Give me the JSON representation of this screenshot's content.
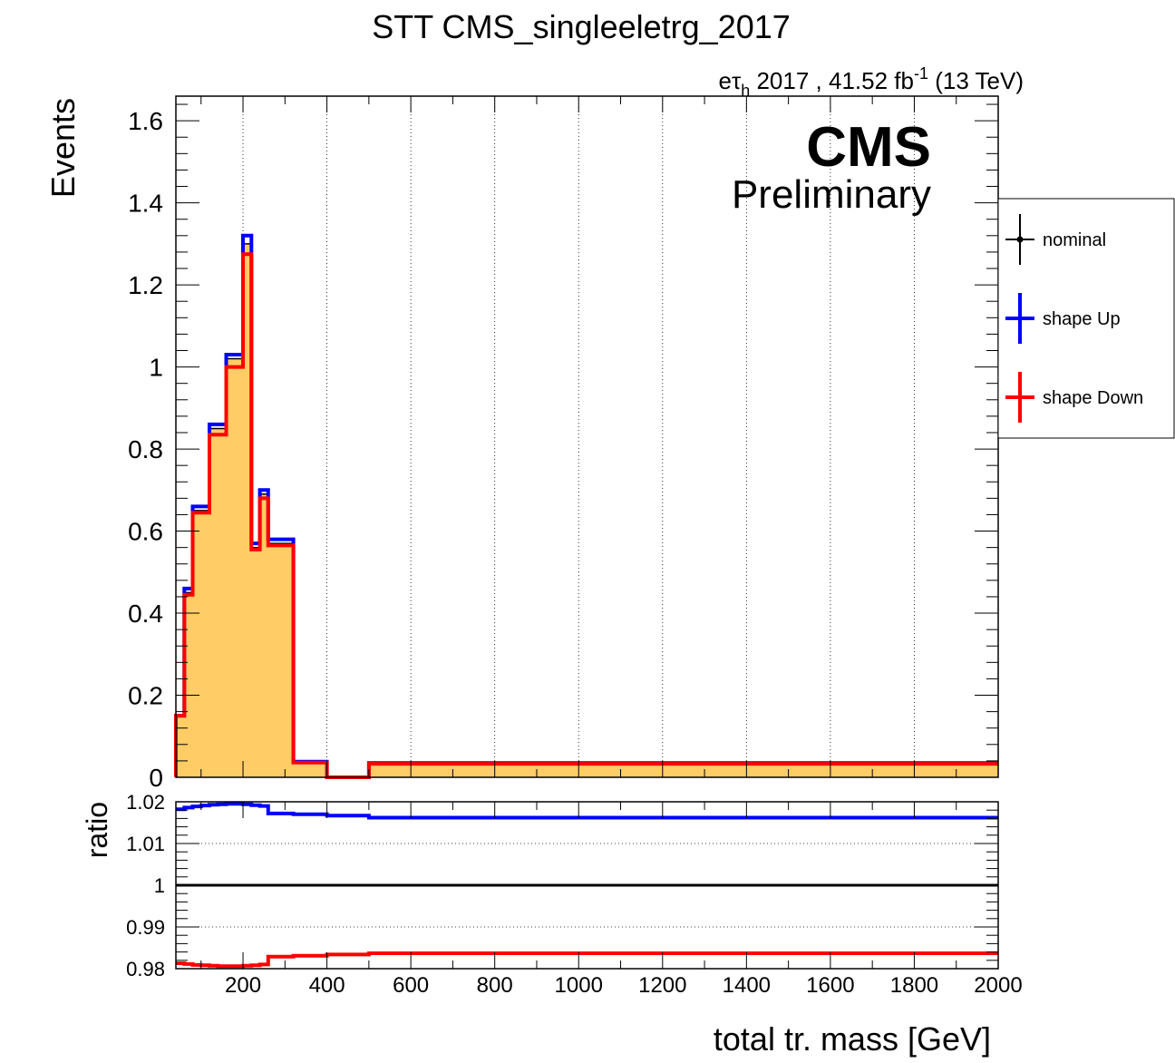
{
  "title": "STT CMS_singleeletrg_2017",
  "lumi": {
    "channel_base": "eτ",
    "channel_sub": "h",
    "year_lumi": " 2017 , 41.52 fb",
    "lumi_exp": "-1",
    "energy": " (13 TeV)"
  },
  "cms_label": "CMS",
  "cms_sublabel": "Preliminary",
  "legend": {
    "entries": [
      {
        "label": "nominal",
        "color": "#000000"
      },
      {
        "label": "shape Up",
        "color": "#0000ff"
      },
      {
        "label": "shape Down",
        "color": "#ff0000"
      }
    ]
  },
  "colors": {
    "fill": "#ffcc66",
    "up": "#0000ff",
    "down": "#ff0000",
    "ratio_line": "#000000"
  },
  "chart_data": [
    {
      "type": "histogram",
      "ylabel": "Events",
      "xlim": [
        40,
        2000
      ],
      "ylim": [
        0,
        1.66
      ],
      "yticks": [
        0,
        0.2,
        0.4,
        0.6,
        0.8,
        1,
        1.2,
        1.4,
        1.6
      ],
      "ytick_labels": [
        "0",
        "0.2",
        "0.4",
        "0.6",
        "0.8",
        "1",
        "1.2",
        "1.4",
        "1.6"
      ],
      "grid_x": true,
      "bin_edges": [
        40,
        60,
        80,
        100,
        120,
        140,
        160,
        180,
        200,
        220,
        240,
        260,
        280,
        320,
        400,
        500,
        2000
      ],
      "series": [
        {
          "name": "nominal",
          "values": [
            0.15,
            0.45,
            0.65,
            0.65,
            0.85,
            0.85,
            1.02,
            1.02,
            1.3,
            0.56,
            0.69,
            0.57,
            0.57,
            0.037,
            0.0,
            0.034
          ]
        },
        {
          "name": "shape Up",
          "values": [
            0.15,
            0.46,
            0.66,
            0.66,
            0.86,
            0.86,
            1.03,
            1.03,
            1.32,
            0.57,
            0.7,
            0.58,
            0.58,
            0.038,
            0.0,
            0.035
          ]
        },
        {
          "name": "shape Down",
          "values": [
            0.15,
            0.445,
            0.645,
            0.645,
            0.835,
            0.835,
            1.0,
            1.0,
            1.275,
            0.555,
            0.68,
            0.565,
            0.565,
            0.036,
            0.0,
            0.033
          ]
        }
      ]
    },
    {
      "type": "line",
      "ylabel": "ratio",
      "xlabel": "total tr. mass [GeV]",
      "xlim": [
        40,
        2000
      ],
      "ylim": [
        0.98,
        1.02
      ],
      "yticks": [
        0.98,
        0.99,
        1,
        1.01,
        1.02
      ],
      "ytick_labels": [
        "0.98",
        "0.99",
        "1",
        "1.01",
        "1.02"
      ],
      "xticks": [
        200,
        400,
        600,
        800,
        1000,
        1200,
        1400,
        1600,
        1800,
        2000
      ],
      "xtick_labels": [
        "200",
        "400",
        "600",
        "800",
        "1000",
        "1200",
        "1400",
        "1600",
        "1800",
        "2000"
      ],
      "grid_y": true,
      "bin_edges": [
        40,
        60,
        80,
        100,
        120,
        140,
        160,
        180,
        200,
        220,
        240,
        260,
        280,
        320,
        400,
        500,
        2000
      ],
      "series": [
        {
          "name": "shape Up",
          "values": [
            1.0182,
            1.0186,
            1.0189,
            1.0191,
            1.0193,
            1.0194,
            1.0195,
            1.0195,
            1.0194,
            1.0192,
            1.019,
            1.0172,
            1.0172,
            1.017,
            1.0167,
            1.0162
          ]
        },
        {
          "name": "shape Down",
          "values": [
            0.9813,
            0.9811,
            0.9809,
            0.9808,
            0.9807,
            0.9806,
            0.9806,
            0.9806,
            0.9807,
            0.9808,
            0.981,
            0.9829,
            0.9829,
            0.9831,
            0.9834,
            0.9837
          ]
        }
      ]
    }
  ]
}
